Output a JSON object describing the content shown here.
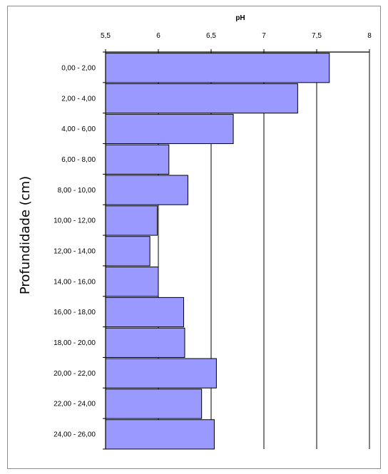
{
  "chart_data": {
    "type": "bar",
    "orientation": "horizontal",
    "title": "pH",
    "xlabel": "pH",
    "ylabel": "Profundidade (cm)",
    "xlim": [
      5.5,
      8
    ],
    "x_ticks": [
      "5,5",
      "6",
      "6,5",
      "7",
      "7,5",
      "8"
    ],
    "x_axis_position": "top",
    "grid": "vertical",
    "categories": [
      "0,00 - 2,00",
      "2,00 - 4,00",
      "4,00 - 6,00",
      "6,00 - 8,00",
      "8,00 - 10,00",
      "10,00 - 12,00",
      "12,00 - 14,00",
      "14,00 - 16,00",
      "16,00 - 18,00",
      "18,00 - 20,00",
      "20,00 - 22,00",
      "22,00 - 24,00",
      "24,00 - 26,00"
    ],
    "values": [
      7.62,
      7.32,
      6.71,
      6.1,
      6.28,
      5.99,
      5.92,
      6.0,
      6.24,
      6.25,
      6.55,
      6.41,
      6.53
    ],
    "colors": {
      "bar_fill": "#9999ff",
      "bar_stroke": "#000000",
      "grid": "#000000",
      "frame": "#8c8c8c"
    }
  }
}
